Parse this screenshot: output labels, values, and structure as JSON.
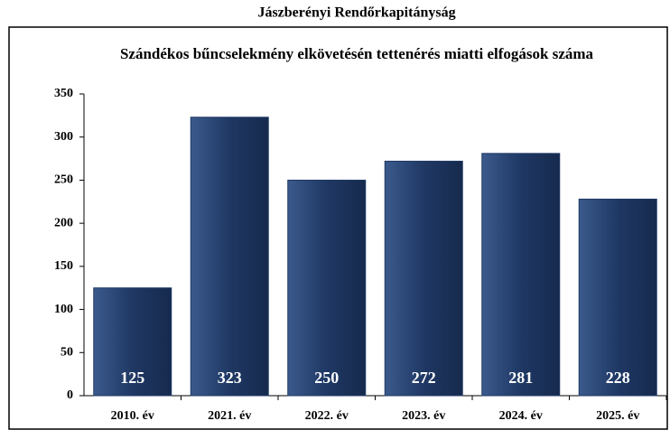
{
  "header": {
    "title": "Jászberényi Rendőrkapitányság"
  },
  "chart_data": {
    "type": "bar",
    "title": "Szándékos bűncselekmény elkövetésén tettenérés miatti elfogások száma",
    "categories": [
      "2010. év",
      "2021. év",
      "2022. év",
      "2023. év",
      "2024. év",
      "2025. év"
    ],
    "values": [
      125,
      323,
      250,
      272,
      281,
      228
    ],
    "color": "#1f3864",
    "ylim": [
      0,
      350
    ],
    "yticks": [
      0,
      50,
      100,
      150,
      200,
      250,
      300,
      350
    ],
    "grid": false
  }
}
